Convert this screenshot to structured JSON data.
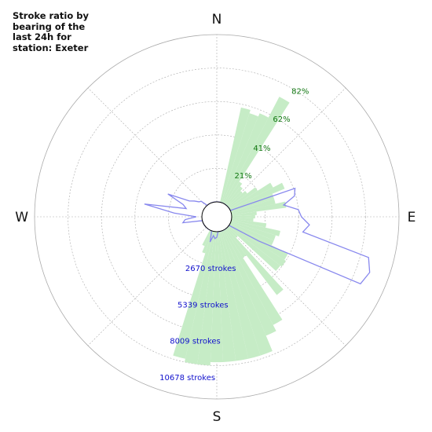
{
  "chart_data": {
    "type": "polar",
    "title": "Stroke ratio by\nbearing of the\nlast 24h for\nstation: Exeter",
    "compass_labels": {
      "north": "N",
      "east": "E",
      "south": "S",
      "west": "W"
    },
    "ratio_ticks": [
      {
        "value": 21,
        "label": "21%"
      },
      {
        "value": 41,
        "label": "41%"
      },
      {
        "value": 62,
        "label": "62%"
      },
      {
        "value": 82,
        "label": "82%"
      }
    ],
    "stroke_ticks": [
      {
        "value": 2670,
        "label": "2670 strokes"
      },
      {
        "value": 5339,
        "label": "5339 strokes"
      },
      {
        "value": 8009,
        "label": "8009 strokes"
      },
      {
        "value": 10678,
        "label": "10678 strokes"
      }
    ],
    "ratio_max": 100,
    "stroke_max": 12000,
    "grid": true,
    "colors": {
      "ratio_bars": "#c6ecc6",
      "stroke_line": "#8888ee",
      "grid": "#aaaaaa",
      "center": "#000000"
    },
    "ratio_series": {
      "name": "",
      "bearings": [
        15,
        20,
        25,
        30,
        35,
        40,
        45,
        50,
        55,
        60,
        65,
        70,
        75,
        80,
        85,
        90,
        95,
        100,
        105,
        110,
        115,
        120,
        125,
        130,
        135,
        140,
        145,
        150,
        155,
        160,
        165,
        170,
        175,
        180,
        185,
        190,
        195,
        200,
        205
      ],
      "values": [
        58,
        56,
        58,
        72,
        16,
        14,
        12,
        14,
        20,
        29,
        35,
        27,
        27,
        33,
        15,
        14,
        13,
        21,
        30,
        28,
        28,
        39,
        40,
        39,
        8,
        50,
        20,
        64,
        68,
        78,
        78,
        78,
        78,
        78,
        80,
        80,
        78,
        14,
        10
      ]
    },
    "stroke_series": {
      "name": "",
      "bearings": [
        0,
        5,
        10,
        15,
        20,
        25,
        30,
        35,
        40,
        45,
        50,
        55,
        60,
        65,
        70,
        75,
        80,
        85,
        90,
        95,
        100,
        105,
        110,
        115,
        120,
        125,
        130,
        135,
        140,
        145,
        150,
        155,
        160,
        165,
        170,
        175,
        180,
        185,
        190,
        195,
        200,
        205,
        210,
        215,
        220,
        225,
        230,
        235,
        240,
        245,
        250,
        255,
        260,
        265,
        270,
        275,
        280,
        285,
        290,
        295,
        300,
        305,
        310,
        315,
        320,
        325,
        330,
        335,
        340,
        345,
        350,
        355
      ],
      "values": [
        0,
        0,
        0,
        0,
        0,
        0,
        0,
        0,
        0,
        0,
        0,
        0,
        0,
        0,
        4900,
        4700,
        3800,
        4800,
        5000,
        5600,
        5200,
        10200,
        10600,
        10300,
        2400,
        0,
        0,
        0,
        0,
        0,
        0,
        0,
        0,
        0,
        0,
        0,
        400,
        500,
        300,
        800,
        0,
        0,
        0,
        0,
        0,
        0,
        0,
        0,
        0,
        0,
        0,
        0,
        1400,
        1200,
        400,
        2000,
        4200,
        1200,
        1500,
        2800,
        1200,
        900,
        600,
        500,
        0,
        0,
        0,
        0,
        0,
        0,
        0,
        0
      ]
    }
  }
}
